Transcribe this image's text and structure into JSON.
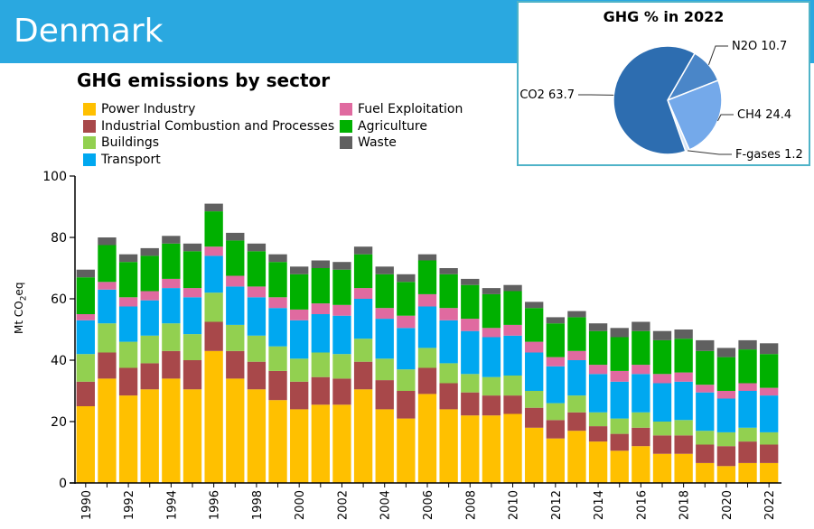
{
  "header": {
    "country": "Denmark"
  },
  "chart_data": [
    {
      "type": "bar",
      "stacked": true,
      "title": "GHG emissions by sector",
      "ylabel": "Mt CO2eq",
      "ylim": [
        0,
        100
      ],
      "yticks": [
        0,
        20,
        40,
        60,
        80,
        100
      ],
      "x_tick_labels": [
        "1990",
        "1992",
        "1994",
        "1996",
        "1998",
        "2000",
        "2002",
        "2004",
        "2006",
        "2008",
        "2010",
        "2012",
        "2014",
        "2016",
        "2018",
        "2020",
        "2022"
      ],
      "categories": [
        "1990",
        "1991",
        "1992",
        "1993",
        "1994",
        "1995",
        "1996",
        "1997",
        "1998",
        "1999",
        "2000",
        "2001",
        "2002",
        "2003",
        "2004",
        "2005",
        "2006",
        "2007",
        "2008",
        "2009",
        "2010",
        "2011",
        "2012",
        "2013",
        "2014",
        "2015",
        "2016",
        "2017",
        "2018",
        "2019",
        "2020",
        "2021",
        "2022"
      ],
      "legend_position": "top",
      "series": [
        {
          "name": "Power Industry",
          "color": "#ffc000",
          "values": [
            25,
            34,
            28.5,
            30.5,
            34,
            30.5,
            43,
            34,
            30.5,
            27,
            24,
            25.5,
            25.5,
            30.5,
            24,
            21,
            29,
            24,
            22,
            22,
            22.5,
            18,
            14.5,
            17,
            13.5,
            10.5,
            12,
            9.5,
            9.5,
            6.5,
            5.5,
            6.5,
            6.5
          ]
        },
        {
          "name": "Industrial Combustion and Processes",
          "color": "#a8484a",
          "values": [
            8,
            8.5,
            9,
            8.5,
            9,
            9.5,
            9.5,
            9,
            9,
            9.5,
            9,
            9,
            8.5,
            9,
            9.5,
            9,
            8.5,
            8.5,
            7.5,
            6.5,
            6,
            6.5,
            6,
            6,
            5,
            5.5,
            6,
            6,
            6,
            6,
            6.5,
            7,
            6
          ]
        },
        {
          "name": "Buildings",
          "color": "#92d050",
          "values": [
            9,
            9.5,
            8.5,
            9,
            9,
            8.5,
            9.5,
            8.5,
            8.5,
            8,
            7.5,
            8,
            8,
            7.5,
            7,
            7,
            6.5,
            6.5,
            6,
            6,
            6.5,
            5.5,
            5.5,
            5.5,
            4.5,
            5,
            5,
            4.5,
            5,
            4.5,
            4.5,
            4.5,
            4
          ]
        },
        {
          "name": "Transport",
          "color": "#00a8f0",
          "values": [
            11,
            11,
            11.5,
            11.5,
            11.5,
            12,
            12,
            12.5,
            12.5,
            12.5,
            12.5,
            12.5,
            12.5,
            13,
            13,
            13.5,
            13.5,
            14,
            14,
            13,
            13,
            12.5,
            12,
            11.5,
            12.5,
            12,
            12.5,
            12.5,
            12.5,
            12.5,
            11,
            12,
            12
          ]
        },
        {
          "name": "Fuel Exploitation",
          "color": "#e06aa0",
          "values": [
            2,
            2.5,
            3,
            3,
            3,
            3,
            3,
            3.5,
            3.5,
            3.5,
            3.5,
            3.5,
            3.5,
            3.5,
            3.5,
            4,
            4,
            4,
            4,
            3,
            3.5,
            3.5,
            3,
            3,
            3,
            3.5,
            3,
            3,
            3,
            2.5,
            2.5,
            2.5,
            2.5
          ]
        },
        {
          "name": "Agriculture",
          "color": "#00b000",
          "values": [
            12,
            12,
            11.5,
            11.5,
            11.5,
            12,
            11.5,
            11.5,
            11.5,
            11.5,
            11.5,
            11.5,
            11.5,
            11,
            11,
            11,
            11,
            11,
            11,
            11,
            11,
            11,
            11,
            11,
            11,
            11,
            11,
            11,
            11,
            11,
            11,
            11,
            11
          ]
        },
        {
          "name": "Waste",
          "color": "#606060",
          "values": [
            2.5,
            2.5,
            2.5,
            2.5,
            2.5,
            2.5,
            2.5,
            2.5,
            2.5,
            2.5,
            2.5,
            2.5,
            2.5,
            2.5,
            2.5,
            2.5,
            2,
            2,
            2,
            2,
            2,
            2,
            2,
            2,
            2.5,
            3,
            3,
            3,
            3,
            3.5,
            3,
            3,
            3.5
          ]
        }
      ]
    },
    {
      "type": "pie",
      "title": "GHG % in 2022",
      "slices": [
        {
          "label": "N2O 10.7",
          "value": 10.7,
          "color": "#4a86c8"
        },
        {
          "label": "CH4 24.4",
          "value": 24.4,
          "color": "#74a9ea"
        },
        {
          "label": "F-gases 1.2",
          "value": 1.2,
          "color": "#d6e6f7"
        },
        {
          "label": "CO2 63.7",
          "value": 63.7,
          "color": "#2d6db0"
        }
      ]
    }
  ]
}
